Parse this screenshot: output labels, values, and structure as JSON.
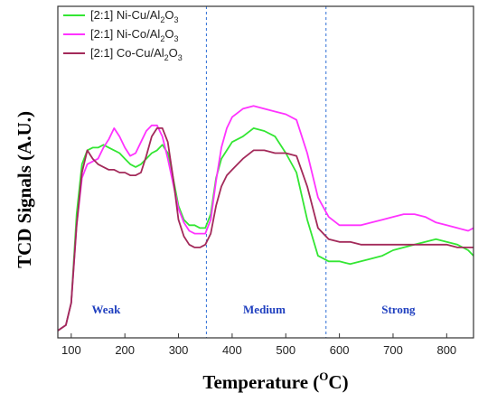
{
  "chart_data": {
    "type": "line",
    "xlabel": "Temperature (",
    "xlabel_sup": "O",
    "xlabel_tail": "C)",
    "ylabel": "TCD Signals (A.U.)",
    "xlim": [
      75,
      850
    ],
    "ylim": [
      0,
      100
    ],
    "xticks": [
      100,
      200,
      300,
      400,
      500,
      600,
      700,
      800
    ],
    "yticks_shown": false,
    "dividers": [
      352,
      575
    ],
    "divider_color": "#2f6fd6",
    "regions": [
      {
        "label": "Weak",
        "x": 165
      },
      {
        "label": "Medium",
        "x": 460
      },
      {
        "label": "Strong",
        "x": 710
      }
    ],
    "region_color": "#1f3fbf",
    "legend_position": "top-left",
    "series": [
      {
        "name_parts": [
          "[2:1] Ni-Cu/Al",
          "2",
          "O",
          "3"
        ],
        "color": "#33e633",
        "x": [
          75,
          90,
          100,
          110,
          120,
          130,
          140,
          150,
          160,
          170,
          180,
          190,
          200,
          210,
          220,
          230,
          240,
          250,
          260,
          270,
          280,
          290,
          300,
          310,
          320,
          330,
          340,
          350,
          360,
          370,
          380,
          390,
          400,
          420,
          440,
          460,
          480,
          500,
          520,
          540,
          560,
          580,
          600,
          620,
          640,
          660,
          680,
          700,
          720,
          740,
          760,
          780,
          800,
          820,
          840,
          850
        ],
        "y": [
          0,
          2,
          10,
          42,
          60,
          65,
          66,
          66,
          67,
          66,
          65,
          64,
          62,
          60,
          59,
          60,
          62,
          64,
          65,
          67,
          64,
          55,
          45,
          40,
          38,
          38,
          37,
          37,
          42,
          55,
          62,
          65,
          68,
          70,
          73,
          72,
          70,
          64,
          57,
          40,
          27,
          25,
          25,
          24,
          25,
          26,
          27,
          29,
          30,
          31,
          32,
          33,
          32,
          31,
          29,
          27
        ]
      },
      {
        "name_parts": [
          "[2:1] Ni-Co/Al",
          "2",
          "O",
          "3"
        ],
        "color": "#ff33ff",
        "x": [
          75,
          90,
          100,
          110,
          120,
          130,
          140,
          150,
          160,
          170,
          180,
          190,
          200,
          210,
          220,
          230,
          240,
          250,
          260,
          270,
          280,
          290,
          300,
          310,
          320,
          330,
          340,
          350,
          360,
          370,
          380,
          390,
          400,
          420,
          440,
          460,
          480,
          500,
          520,
          540,
          560,
          580,
          600,
          620,
          640,
          660,
          680,
          700,
          720,
          740,
          760,
          780,
          800,
          820,
          840,
          850
        ],
        "y": [
          0,
          2,
          10,
          38,
          55,
          60,
          61,
          62,
          66,
          69,
          73,
          70,
          66,
          63,
          64,
          68,
          72,
          74,
          74,
          70,
          62,
          53,
          44,
          39,
          36,
          35,
          35,
          35,
          40,
          54,
          66,
          73,
          77,
          80,
          81,
          80,
          79,
          78,
          76,
          64,
          48,
          41,
          38,
          38,
          38,
          39,
          40,
          41,
          42,
          42,
          41,
          39,
          38,
          37,
          36,
          37
        ]
      },
      {
        "name_parts": [
          "[2:1] Co-Cu/Al",
          "2",
          "O",
          "3"
        ],
        "color": "#a32a5a",
        "x": [
          75,
          90,
          100,
          110,
          120,
          130,
          140,
          150,
          160,
          170,
          180,
          190,
          200,
          210,
          220,
          230,
          240,
          250,
          260,
          270,
          280,
          290,
          300,
          310,
          320,
          330,
          340,
          350,
          360,
          370,
          380,
          390,
          400,
          420,
          440,
          460,
          480,
          500,
          520,
          540,
          560,
          580,
          600,
          620,
          640,
          660,
          680,
          700,
          720,
          740,
          760,
          780,
          800,
          820,
          840,
          850
        ],
        "y": [
          0,
          2,
          10,
          38,
          57,
          65,
          62,
          60,
          59,
          58,
          58,
          57,
          57,
          56,
          56,
          57,
          63,
          70,
          73,
          73,
          68,
          55,
          40,
          34,
          31,
          30,
          30,
          31,
          35,
          45,
          52,
          56,
          58,
          62,
          65,
          65,
          64,
          64,
          63,
          52,
          37,
          33,
          32,
          32,
          31,
          31,
          31,
          31,
          31,
          31,
          31,
          31,
          31,
          30,
          30,
          30
        ]
      }
    ]
  }
}
